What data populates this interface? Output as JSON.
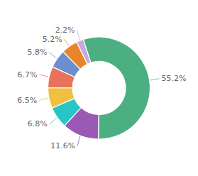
{
  "chart_data": {
    "type": "donut",
    "values": [
      55.2,
      11.6,
      6.8,
      6.5,
      6.7,
      5.8,
      5.2,
      2.2
    ],
    "value_labels": [
      "55.2%",
      "11.6%",
      "6.8%",
      "6.5%",
      "6.7%",
      "5.8%",
      "5.2%",
      "2.2%"
    ],
    "colors": [
      "#4CAF82",
      "#9B59B6",
      "#26C6C6",
      "#F0C040",
      "#E8735A",
      "#6B8FCE",
      "#E8852A",
      "#C9A8DC"
    ],
    "data_labels": true
  }
}
